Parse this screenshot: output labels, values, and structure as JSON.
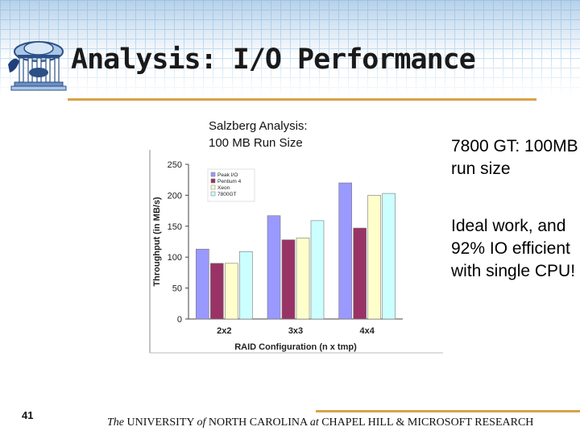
{
  "slide": {
    "title": "Analysis: I/O Performance",
    "page_number": "41",
    "logo_icon": "old-well-icon"
  },
  "chart_heading": {
    "line1": "Salzberg Analysis:",
    "line2": "100 MB Run Size"
  },
  "right_text": {
    "block1": "7800 GT: 100MB run size",
    "block2": "Ideal work, and 92% IO efficient with single CPU!"
  },
  "footer": {
    "the": "The",
    "university": " UNIVERSITY ",
    "of": "of",
    "nc": " NORTH CAROLINA ",
    "at": "at",
    "rest": " CHAPEL HILL & MICROSOFT RESEARCH"
  },
  "colors": {
    "accent_rule": "#d8a24a"
  },
  "chart_data": {
    "type": "bar",
    "categories": [
      "2x2",
      "3x3",
      "4x4"
    ],
    "series": [
      {
        "name": "Peak I/O",
        "color": "#9999ff",
        "values": [
          113,
          167,
          220
        ]
      },
      {
        "name": "Pentium 4",
        "color": "#993366",
        "values": [
          90,
          128,
          147
        ]
      },
      {
        "name": "Xeon",
        "color": "#ffffcc",
        "values": [
          90,
          131,
          200
        ]
      },
      {
        "name": "7800GT",
        "color": "#ccffff",
        "values": [
          109,
          159,
          203
        ]
      }
    ],
    "xlabel": "RAID Configuration (n x tmp)",
    "ylabel": "Throughput (in MB/s)",
    "ylim": [
      0,
      250
    ],
    "yticks": [
      0,
      50,
      100,
      150,
      200,
      250
    ],
    "legend_position": "top-left",
    "grid": false
  }
}
